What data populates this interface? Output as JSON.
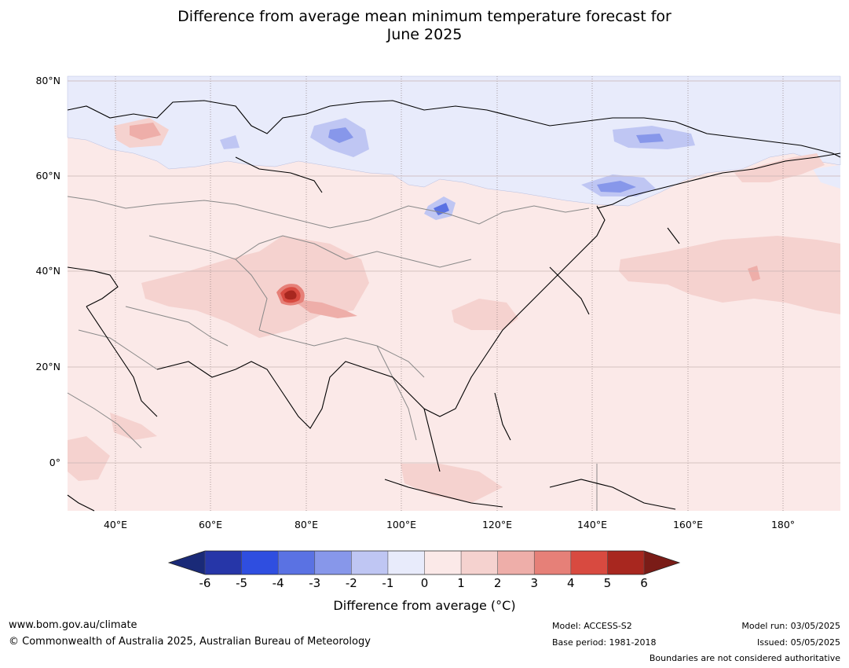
{
  "title": {
    "line1": "Difference from average mean minimum temperature forecast for",
    "line2": "June 2025"
  },
  "map": {
    "lat_labels": [
      "80°N",
      "60°N",
      "40°N",
      "20°N",
      "0°"
    ],
    "lon_labels": [
      "40°E",
      "60°E",
      "80°E",
      "100°E",
      "120°E",
      "140°E",
      "160°E",
      "180°"
    ],
    "lon_range": [
      30,
      192
    ],
    "lat_range": [
      -10,
      80
    ],
    "background_anomaly_color": "#fbe9e8"
  },
  "colorbar": {
    "ticks": [
      "-6",
      "-5",
      "-4",
      "-3",
      "-2",
      "-1",
      "0",
      "1",
      "2",
      "3",
      "4",
      "5",
      "6"
    ],
    "colors": [
      "#2636a8",
      "#2f4ee0",
      "#5a72e3",
      "#8797ea",
      "#bfc6f3",
      "#e8ebfb",
      "#fbe9e8",
      "#f5d2cf",
      "#eeaea9",
      "#e68078",
      "#d84a40",
      "#a8271f"
    ],
    "under_color": "#1a2a78",
    "over_color": "#7a1c17",
    "label": "Difference from average (°C)"
  },
  "footer": {
    "url": "www.bom.gov.au/climate",
    "copyright": "© Commonwealth of Australia 2025, Australian Bureau of Meteorology",
    "model": "Model: ACCESS-S2",
    "base_period": "Base period: 1981-2018",
    "model_run": "Model run: 03/05/2025",
    "issued": "Issued: 05/05/2025",
    "disclaimer": "Boundaries are not considered authoritative"
  }
}
